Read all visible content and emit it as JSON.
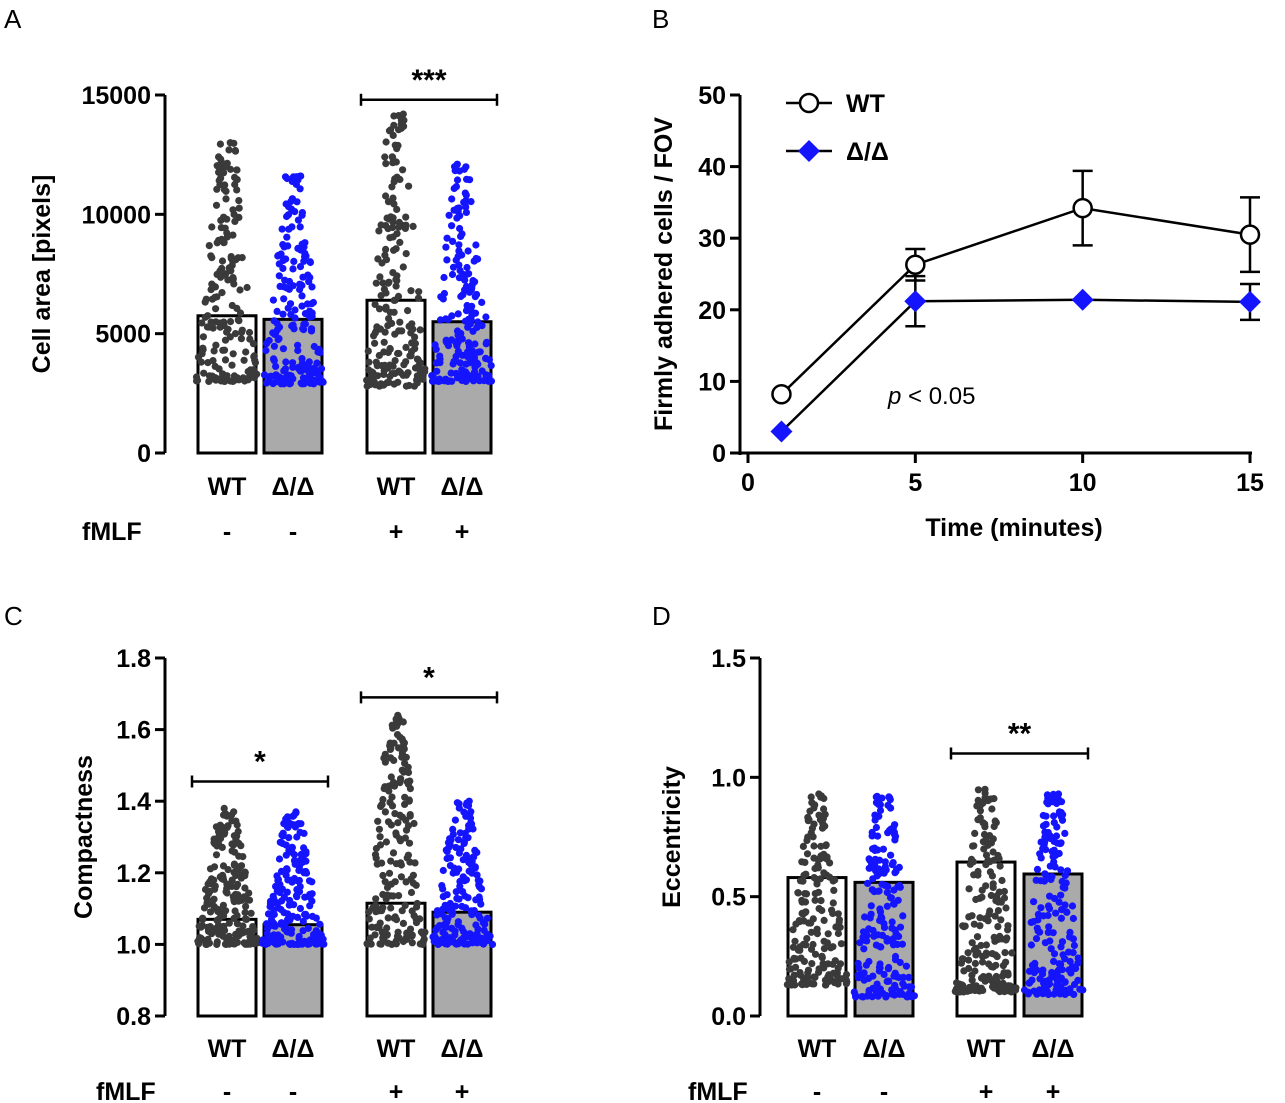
{
  "colors": {
    "wt": "#3a3a3a",
    "ko": "#1414ff",
    "bar_wt": "#ffffff",
    "bar_ko": "#aaaaaa",
    "axis": "#000000"
  },
  "chart_data": [
    {
      "panel": "A",
      "type": "bar",
      "ylabel": "Cell area [pixels]",
      "ylim": [
        0,
        15000
      ],
      "yticks": [
        "0",
        "5000",
        "10000",
        "15000"
      ],
      "categories": [
        "WT",
        "Δ/Δ",
        "WT",
        "Δ/Δ"
      ],
      "treatment_label": "fMLF",
      "treatment": [
        "-",
        "-",
        "+",
        "+"
      ],
      "values": [
        5750,
        5600,
        6400,
        5500
      ],
      "point_range": [
        [
          3000,
          13000
        ],
        [
          2900,
          11600
        ],
        [
          2800,
          14200
        ],
        [
          3000,
          12100
        ]
      ],
      "significance": {
        "label": "***",
        "from": 2,
        "to": 3,
        "y": 14800
      }
    },
    {
      "panel": "B",
      "type": "line",
      "ylabel": "Firmly adhered cells / FOV",
      "xlabel": "Time (minutes)",
      "xlim": [
        0,
        15
      ],
      "ylim": [
        0,
        50
      ],
      "xticks": [
        "0",
        "5",
        "10",
        "15"
      ],
      "yticks": [
        "0",
        "10",
        "20",
        "30",
        "40",
        "50"
      ],
      "annotation_p": "p",
      "annotation_rest": " < 0.05",
      "series": [
        {
          "name": "WT",
          "x": [
            1,
            5,
            10,
            15
          ],
          "values": [
            8.2,
            26.3,
            34.2,
            30.5
          ],
          "error": [
            0,
            2.2,
            5.2,
            5.2
          ]
        },
        {
          "name": "Δ/Δ",
          "x": [
            1,
            5,
            10,
            15
          ],
          "values": [
            3.0,
            21.2,
            21.4,
            21.1
          ],
          "error": [
            0,
            3.5,
            0,
            2.5
          ]
        }
      ]
    },
    {
      "panel": "C",
      "type": "bar",
      "ylabel": "Compactness",
      "ylim": [
        0.8,
        1.8
      ],
      "yticks": [
        "0.8",
        "1.0",
        "1.2",
        "1.4",
        "1.6",
        "1.8"
      ],
      "categories": [
        "WT",
        "Δ/Δ",
        "WT",
        "Δ/Δ"
      ],
      "treatment_label": "fMLF",
      "treatment": [
        "-",
        "-",
        "+",
        "+"
      ],
      "values": [
        1.07,
        1.055,
        1.115,
        1.09
      ],
      "point_range": [
        [
          1.0,
          1.38
        ],
        [
          1.0,
          1.37
        ],
        [
          1.0,
          1.64
        ],
        [
          1.0,
          1.4
        ]
      ],
      "significance": [
        {
          "label": "*",
          "from": 0,
          "to": 1,
          "y": 1.455
        },
        {
          "label": "*",
          "from": 2,
          "to": 3,
          "y": 1.69
        }
      ]
    },
    {
      "panel": "D",
      "type": "bar",
      "ylabel": "Eccentricity",
      "ylim": [
        0.0,
        1.5
      ],
      "yticks": [
        "0.0",
        "0.5",
        "1.0",
        "1.5"
      ],
      "categories": [
        "WT",
        "Δ/Δ",
        "WT",
        "Δ/Δ"
      ],
      "treatment_label": "fMLF",
      "treatment": [
        "-",
        "-",
        "+",
        "+"
      ],
      "values": [
        0.58,
        0.56,
        0.645,
        0.595
      ],
      "point_range": [
        [
          0.13,
          0.93
        ],
        [
          0.08,
          0.92
        ],
        [
          0.1,
          0.95
        ],
        [
          0.09,
          0.93
        ]
      ],
      "significance": {
        "label": "**",
        "from": 2,
        "to": 3,
        "y": 1.1
      }
    }
  ]
}
